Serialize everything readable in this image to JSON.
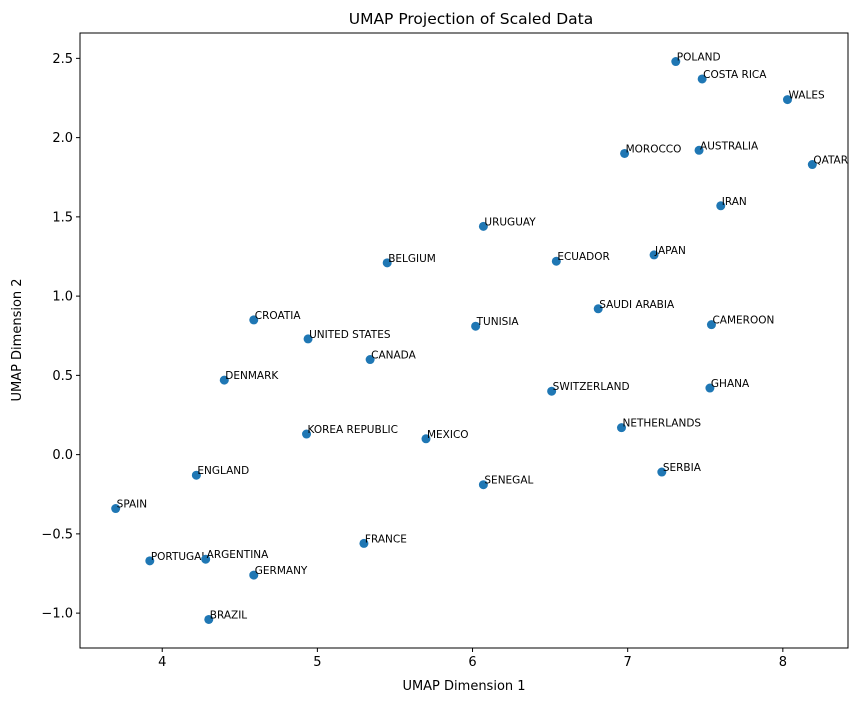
{
  "chart_data": {
    "type": "scatter",
    "title": "UMAP Projection of Scaled Data",
    "xlabel": "UMAP Dimension 1",
    "ylabel": "UMAP Dimension 2",
    "xlim": [
      3.47,
      8.42
    ],
    "ylim": [
      -1.22,
      2.66
    ],
    "xticks": [
      4,
      5,
      6,
      7,
      8
    ],
    "yticks": [
      -1.0,
      -0.5,
      0.0,
      0.5,
      1.0,
      1.5,
      2.0,
      2.5
    ],
    "xtick_labels": [
      "4",
      "5",
      "6",
      "7",
      "8"
    ],
    "ytick_labels": [
      "−1.0",
      "−0.5",
      "0.0",
      "0.5",
      "1.0",
      "1.5",
      "2.0",
      "2.5"
    ],
    "grid": false,
    "marker_color": "#1f77b4",
    "points": [
      {
        "label": "POLAND",
        "x": 7.31,
        "y": 2.48
      },
      {
        "label": "COSTA RICA",
        "x": 7.48,
        "y": 2.37
      },
      {
        "label": "WALES",
        "x": 8.03,
        "y": 2.24
      },
      {
        "label": "MOROCCO",
        "x": 6.98,
        "y": 1.9
      },
      {
        "label": "AUSTRALIA",
        "x": 7.46,
        "y": 1.92
      },
      {
        "label": "QATAR",
        "x": 8.19,
        "y": 1.83
      },
      {
        "label": "IRAN",
        "x": 7.6,
        "y": 1.57
      },
      {
        "label": "URUGUAY",
        "x": 6.07,
        "y": 1.44
      },
      {
        "label": "BELGIUM",
        "x": 5.45,
        "y": 1.21
      },
      {
        "label": "ECUADOR",
        "x": 6.54,
        "y": 1.22
      },
      {
        "label": "JAPAN",
        "x": 7.17,
        "y": 1.26
      },
      {
        "label": "SAUDI ARABIA",
        "x": 6.81,
        "y": 0.92
      },
      {
        "label": "CROATIA",
        "x": 4.59,
        "y": 0.85
      },
      {
        "label": "UNITED STATES",
        "x": 4.94,
        "y": 0.73
      },
      {
        "label": "TUNISIA",
        "x": 6.02,
        "y": 0.81
      },
      {
        "label": "CAMEROON",
        "x": 7.54,
        "y": 0.82
      },
      {
        "label": "CANADA",
        "x": 5.34,
        "y": 0.6
      },
      {
        "label": "DENMARK",
        "x": 4.4,
        "y": 0.47
      },
      {
        "label": "SWITZERLAND",
        "x": 6.51,
        "y": 0.4
      },
      {
        "label": "GHANA",
        "x": 7.53,
        "y": 0.42
      },
      {
        "label": "KOREA REPUBLIC",
        "x": 4.93,
        "y": 0.13
      },
      {
        "label": "MEXICO",
        "x": 5.7,
        "y": 0.1
      },
      {
        "label": "NETHERLANDS",
        "x": 6.96,
        "y": 0.17
      },
      {
        "label": "ENGLAND",
        "x": 4.22,
        "y": -0.13
      },
      {
        "label": "SERBIA",
        "x": 7.22,
        "y": -0.11
      },
      {
        "label": "SENEGAL",
        "x": 6.07,
        "y": -0.19
      },
      {
        "label": "SPAIN",
        "x": 3.7,
        "y": -0.34
      },
      {
        "label": "FRANCE",
        "x": 5.3,
        "y": -0.56
      },
      {
        "label": "PORTUGAL",
        "x": 3.92,
        "y": -0.67
      },
      {
        "label": "ARGENTINA",
        "x": 4.28,
        "y": -0.66
      },
      {
        "label": "GERMANY",
        "x": 4.59,
        "y": -0.76
      },
      {
        "label": "BRAZIL",
        "x": 4.3,
        "y": -1.04
      }
    ]
  }
}
